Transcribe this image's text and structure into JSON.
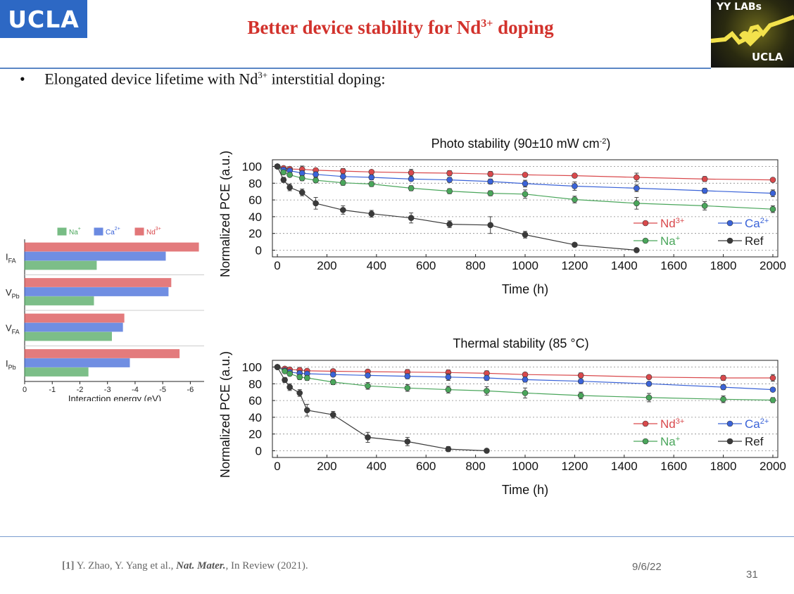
{
  "header": {
    "ucla_logo": "UCLA",
    "title_main": "Better device stability for Nd",
    "title_sup": "3+",
    "title_tail": " doping",
    "yy_logo_top": "YY LABs",
    "yy_logo_bottom": "UCLA"
  },
  "bullet": {
    "symbol": "•",
    "text_main": "Elongated device lifetime with Nd",
    "text_sup": "3+",
    "text_tail": " interstitial doping:"
  },
  "footer": {
    "ref_num": "[1]",
    "ref_authors": " Y. Zhao, Y. Yang et al., ",
    "ref_journal": "Nat. Mater.",
    "ref_tail": ", In Review (2021).",
    "date": "9/6/22",
    "page_number": "31"
  },
  "colors": {
    "nd": "#d9494c",
    "ca": "#3a63d8",
    "na": "#4aa65b",
    "ref": "#3a3a3a",
    "title": "#d2322c"
  },
  "chart_data": [
    {
      "type": "bar",
      "orientation": "horizontal",
      "xlabel": "Interaction energy (eV)",
      "xlim": [
        0,
        -6.5
      ],
      "xticks": [
        0,
        -1,
        -2,
        -3,
        -4,
        -5,
        -6
      ],
      "xtick_labels": [
        "0",
        "-1",
        "-2",
        "-3",
        "-4",
        "-5",
        "-6"
      ],
      "legend_position": "top",
      "categories": [
        {
          "label": "I",
          "sub": "FA"
        },
        {
          "label": "V",
          "sub": "Pb"
        },
        {
          "label": "V",
          "sub": "FA"
        },
        {
          "label": "I",
          "sub": "Pb"
        }
      ],
      "series": [
        {
          "name": "Nd",
          "sup": "3+",
          "color": "#d9494c",
          "values": [
            -6.3,
            -5.3,
            -3.6,
            -5.6
          ]
        },
        {
          "name": "Ca",
          "sup": "2+",
          "color": "#3a63d8",
          "values": [
            -5.1,
            -5.2,
            -3.55,
            -3.8
          ]
        },
        {
          "name": "Na",
          "sup": "+",
          "color": "#4aa65b",
          "values": [
            -2.6,
            -2.5,
            -3.15,
            -2.3
          ]
        }
      ]
    },
    {
      "type": "line",
      "title": "Photo stability (90±10 mW cm",
      "title_sup": "-2",
      "title_tail": ")",
      "xlabel": "Time (h)",
      "ylabel": "Normalized PCE (a.u.)",
      "xlim": [
        -20,
        2020
      ],
      "ylim": [
        -8,
        108
      ],
      "xticks": [
        0,
        200,
        400,
        600,
        800,
        1000,
        1200,
        1400,
        1600,
        1800,
        2000
      ],
      "yticks": [
        0,
        20,
        40,
        60,
        80,
        100
      ],
      "grid": "horizontal-dashed",
      "legend_position": "bottom-right",
      "series": [
        {
          "name": "Nd",
          "sup": "3+",
          "color": "#d9494c",
          "x": [
            0,
            25,
            50,
            100,
            155,
            265,
            380,
            540,
            695,
            860,
            1000,
            1200,
            1450,
            1725,
            2000
          ],
          "y": [
            100,
            98,
            97,
            96.5,
            95.5,
            94.5,
            93.5,
            92.5,
            92,
            91,
            90,
            89,
            87,
            85,
            84
          ],
          "err": [
            0,
            1,
            1,
            4,
            2,
            3,
            2,
            4,
            3,
            3,
            2,
            2,
            5,
            3,
            2
          ]
        },
        {
          "name": "Ca",
          "sup": "2+",
          "color": "#3a63d8",
          "x": [
            0,
            25,
            50,
            100,
            155,
            265,
            380,
            540,
            695,
            860,
            1000,
            1200,
            1450,
            1725,
            2000
          ],
          "y": [
            100,
            96,
            95,
            92,
            90.5,
            88,
            87,
            85,
            84,
            82,
            79.5,
            76.5,
            74,
            71,
            68
          ],
          "err": [
            0,
            2,
            2,
            3,
            3,
            2,
            3,
            2,
            3,
            3,
            4,
            5,
            4,
            3,
            4
          ]
        },
        {
          "name": "Na",
          "sup": "+",
          "color": "#4aa65b",
          "x": [
            0,
            25,
            50,
            100,
            155,
            265,
            380,
            540,
            695,
            860,
            1000,
            1200,
            1450,
            1725,
            2000
          ],
          "y": [
            100,
            93,
            90,
            86,
            83.5,
            80.5,
            79,
            74,
            70.5,
            68,
            67,
            60.5,
            56,
            53,
            49
          ],
          "err": [
            0,
            2,
            2,
            3,
            3,
            3,
            3,
            3,
            3,
            3,
            5,
            4,
            7,
            5,
            4
          ]
        },
        {
          "name": "Ref",
          "sup": "",
          "color": "#3a3a3a",
          "x": [
            0,
            25,
            50,
            100,
            155,
            265,
            380,
            540,
            695,
            860,
            1000,
            1200,
            1450
          ],
          "y": [
            100,
            84,
            75,
            69,
            56,
            48,
            43.5,
            38.5,
            31,
            30,
            18.5,
            6.5,
            0
          ],
          "err": [
            0,
            3,
            4,
            4,
            7,
            5,
            4,
            6,
            4,
            10,
            4,
            2,
            1
          ]
        }
      ]
    },
    {
      "type": "line",
      "title": "Thermal stability (85 °C)",
      "xlabel": "Time (h)",
      "ylabel": "Normalized PCE (a.u.)",
      "xlim": [
        -20,
        2020
      ],
      "ylim": [
        -8,
        108
      ],
      "xticks": [
        0,
        200,
        400,
        600,
        800,
        1000,
        1200,
        1400,
        1600,
        1800,
        2000
      ],
      "yticks": [
        0,
        20,
        40,
        60,
        80,
        100
      ],
      "grid": "horizontal-dashed",
      "legend_position": "bottom-right",
      "series": [
        {
          "name": "Nd",
          "sup": "3+",
          "color": "#d9494c",
          "x": [
            0,
            30,
            50,
            90,
            120,
            225,
            365,
            525,
            690,
            845,
            1000,
            1225,
            1500,
            1800,
            2000
          ],
          "y": [
            100,
            98,
            97,
            96.5,
            95.5,
            95,
            94.5,
            94,
            93.5,
            92.5,
            91,
            90,
            88,
            87,
            87
          ],
          "err": [
            0,
            1,
            1,
            2,
            2,
            2,
            2,
            3,
            3,
            3,
            2,
            3,
            2,
            3,
            4
          ]
        },
        {
          "name": "Ca",
          "sup": "2+",
          "color": "#3a63d8",
          "x": [
            0,
            30,
            50,
            90,
            120,
            225,
            365,
            525,
            690,
            845,
            1000,
            1225,
            1500,
            1800,
            2000
          ],
          "y": [
            100,
            96,
            94,
            92.5,
            92,
            91,
            90,
            89,
            88,
            87,
            85,
            83,
            80,
            76,
            73
          ],
          "err": [
            0,
            2,
            2,
            3,
            2,
            2,
            2,
            3,
            4,
            3,
            3,
            2,
            2,
            3,
            2
          ]
        },
        {
          "name": "Na",
          "sup": "+",
          "color": "#4aa65b",
          "x": [
            0,
            30,
            50,
            90,
            120,
            225,
            365,
            525,
            690,
            845,
            1000,
            1225,
            1500,
            1800,
            2000
          ],
          "y": [
            100,
            95,
            92,
            88,
            87,
            82,
            77.5,
            75,
            73,
            71.5,
            69,
            66,
            63.5,
            61.5,
            60.5
          ],
          "err": [
            0,
            2,
            2,
            3,
            3,
            3,
            4,
            4,
            4,
            5,
            6,
            4,
            5,
            4,
            3
          ]
        },
        {
          "name": "Ref",
          "sup": "",
          "color": "#3a3a3a",
          "x": [
            0,
            30,
            50,
            90,
            120,
            225,
            365,
            525,
            690,
            845
          ],
          "y": [
            100,
            84.5,
            76,
            69,
            48.5,
            43,
            16,
            11,
            2,
            0
          ],
          "err": [
            0,
            3,
            4,
            4,
            7,
            4,
            6,
            5,
            3,
            1
          ]
        }
      ]
    }
  ]
}
